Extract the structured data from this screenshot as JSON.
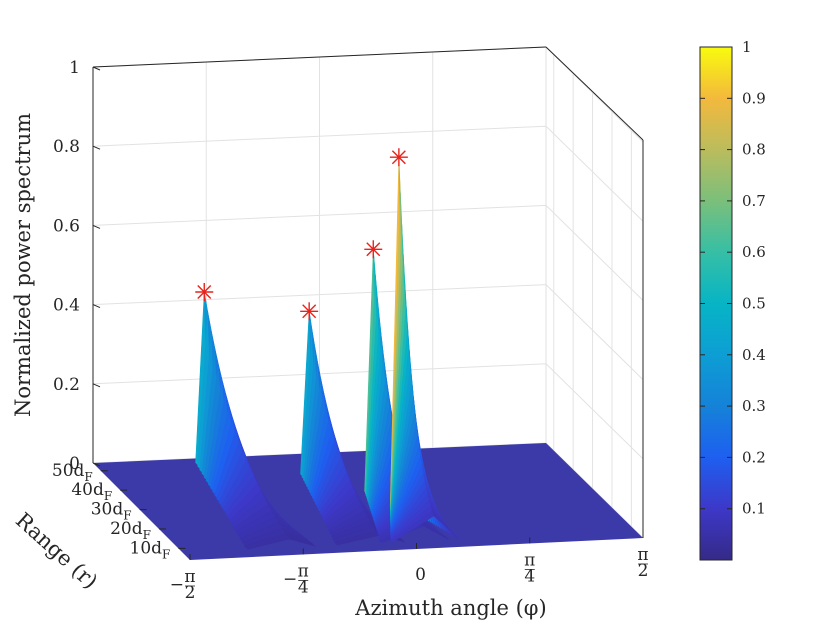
{
  "chart_data": {
    "type": "surface3d",
    "zlabel": "Normalized power spectrum",
    "xlabel": "Azimuth angle (φ)",
    "ylabel": "Range (r)",
    "z_ticks": [
      "0",
      "0.2",
      "0.4",
      "0.6",
      "0.8",
      "1"
    ],
    "zlim": [
      0,
      1
    ],
    "azimuth_ticks": [
      {
        "value": -1.5708,
        "label": "−π/2",
        "num": "π",
        "den": "2",
        "sign": "−"
      },
      {
        "value": -0.7854,
        "label": "−π/4",
        "num": "π",
        "den": "4",
        "sign": "−"
      },
      {
        "value": 0,
        "label": "0"
      },
      {
        "value": 0.7854,
        "label": "π/4",
        "num": "π",
        "den": "4",
        "sign": ""
      },
      {
        "value": 1.5708,
        "label": "π/2",
        "num": "π",
        "den": "2",
        "sign": ""
      }
    ],
    "range_ticks": [
      {
        "value": 10,
        "label": "10d_F",
        "base": "10d",
        "sub": "F"
      },
      {
        "value": 20,
        "label": "20d_F",
        "base": "20d",
        "sub": "F"
      },
      {
        "value": 30,
        "label": "30d_F",
        "base": "30d",
        "sub": "F"
      },
      {
        "value": 40,
        "label": "40d_F",
        "base": "40d",
        "sub": "F"
      },
      {
        "value": 50,
        "label": "50d_F",
        "base": "50d",
        "sub": "F"
      }
    ],
    "peaks": [
      {
        "azimuth": -0.88,
        "range": 48,
        "power": 0.45
      },
      {
        "azimuth": -0.26,
        "range": 40,
        "power": 0.43
      },
      {
        "azimuth": 0.05,
        "range": 30,
        "power": 0.63
      },
      {
        "azimuth": 0.12,
        "range": 22,
        "power": 0.9
      }
    ],
    "markers": [
      {
        "azimuth": -0.88,
        "range": 48,
        "power": 0.45
      },
      {
        "azimuth": -0.26,
        "range": 40,
        "power": 0.43
      },
      {
        "azimuth": 0.05,
        "range": 30,
        "power": 0.63
      },
      {
        "azimuth": 0.12,
        "range": 22,
        "power": 0.9
      }
    ],
    "colorbar": {
      "colormap": "parula",
      "range": [
        0,
        1
      ],
      "ticks": [
        "0.1",
        "0.2",
        "0.3",
        "0.4",
        "0.5",
        "0.6",
        "0.7",
        "0.8",
        "0.9",
        "1"
      ]
    },
    "grid": true,
    "marker_color": "#e8231a",
    "edge_color": "#262626"
  }
}
